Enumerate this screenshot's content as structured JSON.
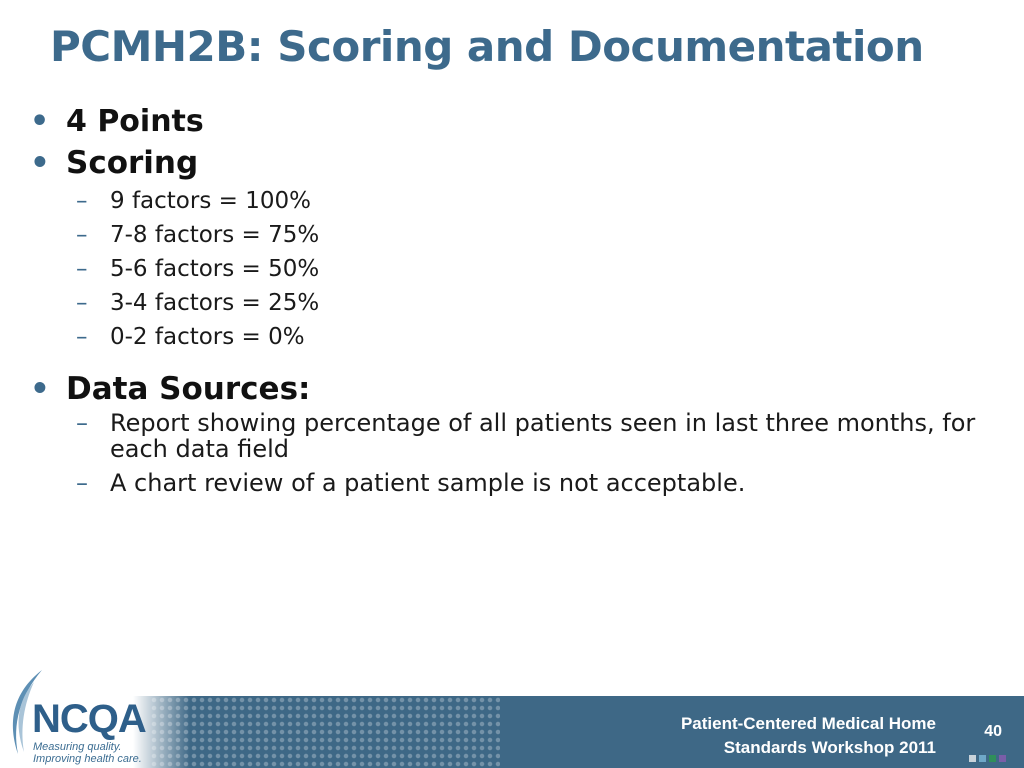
{
  "slide": {
    "title": "PCMH2B: Scoring and Documentation",
    "items": [
      {
        "bullet": "•",
        "text": "4 Points"
      },
      {
        "bullet": "•",
        "text": "Scoring"
      }
    ],
    "scoring": [
      {
        "dash": "–",
        "text": "9 factors = 100%"
      },
      {
        "dash": "–",
        "text": "7-8 factors = 75%"
      },
      {
        "dash": "–",
        "text": "5-6 factors = 50%"
      },
      {
        "dash": "–",
        "text": "3-4 factors = 25%"
      },
      {
        "dash": "–",
        "text": "0-2 factors = 0%"
      }
    ],
    "data_sources": {
      "bullet": "•",
      "text": "Data Sources:"
    },
    "sources": [
      {
        "dash": "–",
        "text": "Report showing percentage of all patients seen in last three months, for each data field"
      },
      {
        "dash": "–",
        "text": "A chart review of a patient sample is not acceptable."
      }
    ]
  },
  "footer": {
    "logo_text": "NCQA",
    "tagline_1": "Measuring quality.",
    "tagline_2": "Improving health care.",
    "line_1": "Patient-Centered Medical Home",
    "line_2": "Standards Workshop 2011",
    "page_number": "40",
    "square_colors": [
      "#c9d3da",
      "#6fa8c8",
      "#2f8f5a",
      "#7a5ea8"
    ]
  }
}
